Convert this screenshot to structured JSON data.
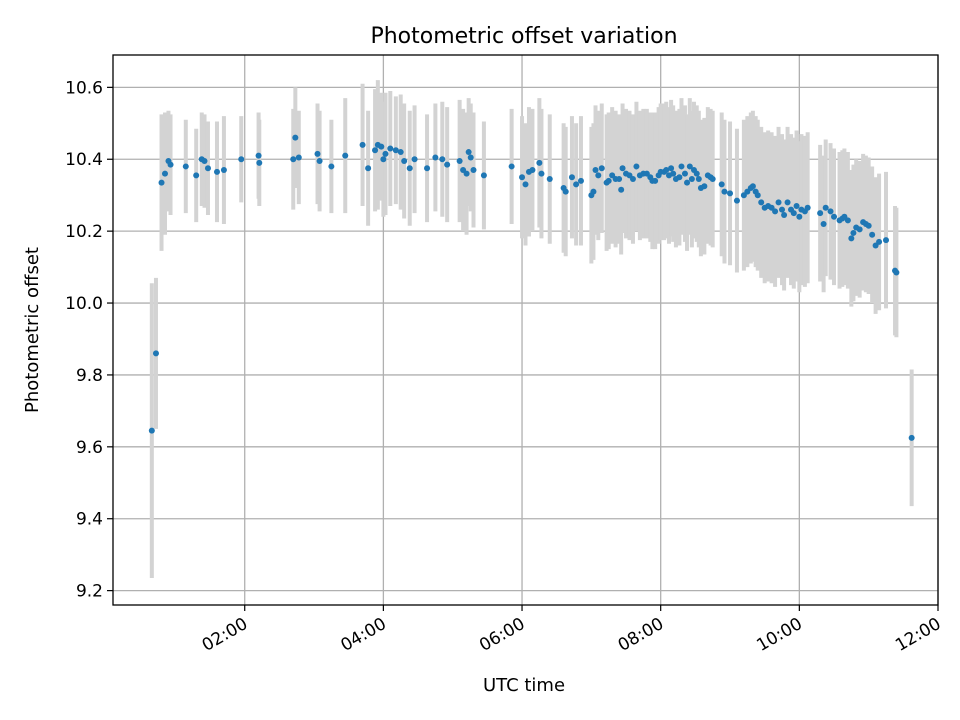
{
  "chart_data": {
    "type": "scatter",
    "title": "Photometric offset variation",
    "xlabel": "UTC time",
    "ylabel": "Photometric offset",
    "x_unit": "hours UTC",
    "xlim": [
      0.1,
      12.0
    ],
    "ylim": [
      9.16,
      10.69
    ],
    "grid": true,
    "x_ticks": [
      {
        "value": 2,
        "label": "02:00"
      },
      {
        "value": 4,
        "label": "04:00"
      },
      {
        "value": 6,
        "label": "06:00"
      },
      {
        "value": 8,
        "label": "08:00"
      },
      {
        "value": 10,
        "label": "10:00"
      },
      {
        "value": 12,
        "label": "12:00"
      }
    ],
    "y_ticks": [
      9.2,
      9.4,
      9.6,
      9.8,
      10.0,
      10.2,
      10.4,
      10.6
    ],
    "y_tick_labels": [
      "9.2",
      "9.4",
      "9.6",
      "9.8",
      "10.0",
      "10.2",
      "10.4",
      "10.6"
    ],
    "point_color": "#1f77b4",
    "errorbar_color": "#d3d3d3",
    "series": [
      {
        "name": "offset",
        "points": [
          [
            0.66,
            9.645,
            0.41
          ],
          [
            0.72,
            9.86,
            0.21
          ],
          [
            0.8,
            10.335,
            0.19
          ],
          [
            0.85,
            10.36,
            0.17
          ],
          [
            0.9,
            10.395,
            0.14
          ],
          [
            0.93,
            10.385,
            0.14
          ],
          [
            1.15,
            10.38,
            0.13
          ],
          [
            1.3,
            10.355,
            0.13
          ],
          [
            1.38,
            10.4,
            0.13
          ],
          [
            1.42,
            10.395,
            0.13
          ],
          [
            1.47,
            10.375,
            0.13
          ],
          [
            1.6,
            10.365,
            0.14
          ],
          [
            1.7,
            10.37,
            0.15
          ],
          [
            1.95,
            10.4,
            0.12
          ],
          [
            2.2,
            10.41,
            0.12
          ],
          [
            2.21,
            10.39,
            0.12
          ],
          [
            2.7,
            10.4,
            0.14
          ],
          [
            2.73,
            10.46,
            0.14
          ],
          [
            2.78,
            10.405,
            0.13
          ],
          [
            3.05,
            10.415,
            0.14
          ],
          [
            3.08,
            10.395,
            0.14
          ],
          [
            3.25,
            10.38,
            0.13
          ],
          [
            3.45,
            10.41,
            0.16
          ],
          [
            3.7,
            10.44,
            0.17
          ],
          [
            3.78,
            10.375,
            0.16
          ],
          [
            3.88,
            10.425,
            0.17
          ],
          [
            3.92,
            10.44,
            0.18
          ],
          [
            3.97,
            10.435,
            0.15
          ],
          [
            4.0,
            10.4,
            0.16
          ],
          [
            4.03,
            10.415,
            0.17
          ],
          [
            4.1,
            10.43,
            0.16
          ],
          [
            4.18,
            10.425,
            0.15
          ],
          [
            4.25,
            10.42,
            0.16
          ],
          [
            4.3,
            10.395,
            0.16
          ],
          [
            4.38,
            10.375,
            0.16
          ],
          [
            4.45,
            10.4,
            0.15
          ],
          [
            4.63,
            10.375,
            0.15
          ],
          [
            4.75,
            10.405,
            0.15
          ],
          [
            4.85,
            10.4,
            0.16
          ],
          [
            4.92,
            10.385,
            0.16
          ],
          [
            5.1,
            10.395,
            0.17
          ],
          [
            5.15,
            10.37,
            0.17
          ],
          [
            5.2,
            10.36,
            0.17
          ],
          [
            5.23,
            10.42,
            0.15
          ],
          [
            5.26,
            10.405,
            0.15
          ],
          [
            5.3,
            10.37,
            0.16
          ],
          [
            5.45,
            10.355,
            0.15
          ],
          [
            5.85,
            10.38,
            0.16
          ],
          [
            6.0,
            10.35,
            0.17
          ],
          [
            6.05,
            10.33,
            0.17
          ],
          [
            6.1,
            10.365,
            0.18
          ],
          [
            6.15,
            10.37,
            0.17
          ],
          [
            6.25,
            10.39,
            0.18
          ],
          [
            6.28,
            10.36,
            0.18
          ],
          [
            6.4,
            10.345,
            0.18
          ],
          [
            6.6,
            10.32,
            0.18
          ],
          [
            6.63,
            10.31,
            0.18
          ],
          [
            6.72,
            10.35,
            0.17
          ],
          [
            6.78,
            10.33,
            0.17
          ],
          [
            6.85,
            10.34,
            0.18
          ],
          [
            7.0,
            10.3,
            0.19
          ],
          [
            7.03,
            10.31,
            0.19
          ],
          [
            7.06,
            10.37,
            0.18
          ],
          [
            7.1,
            10.355,
            0.18
          ],
          [
            7.15,
            10.375,
            0.18
          ],
          [
            7.22,
            10.335,
            0.19
          ],
          [
            7.25,
            10.34,
            0.19
          ],
          [
            7.3,
            10.355,
            0.19
          ],
          [
            7.35,
            10.345,
            0.19
          ],
          [
            7.4,
            10.345,
            0.18
          ],
          [
            7.43,
            10.315,
            0.18
          ],
          [
            7.45,
            10.375,
            0.18
          ],
          [
            7.5,
            10.36,
            0.18
          ],
          [
            7.55,
            10.355,
            0.18
          ],
          [
            7.6,
            10.345,
            0.18
          ],
          [
            7.65,
            10.38,
            0.18
          ],
          [
            7.7,
            10.355,
            0.18
          ],
          [
            7.75,
            10.36,
            0.18
          ],
          [
            7.8,
            10.36,
            0.18
          ],
          [
            7.85,
            10.35,
            0.18
          ],
          [
            7.88,
            10.34,
            0.19
          ],
          [
            7.92,
            10.34,
            0.19
          ],
          [
            7.97,
            10.355,
            0.19
          ],
          [
            8.0,
            10.365,
            0.19
          ],
          [
            8.05,
            10.365,
            0.19
          ],
          [
            8.08,
            10.37,
            0.19
          ],
          [
            8.12,
            10.355,
            0.19
          ],
          [
            8.15,
            10.375,
            0.19
          ],
          [
            8.18,
            10.36,
            0.19
          ],
          [
            8.22,
            10.345,
            0.19
          ],
          [
            8.27,
            10.35,
            0.19
          ],
          [
            8.3,
            10.38,
            0.19
          ],
          [
            8.35,
            10.36,
            0.19
          ],
          [
            8.38,
            10.335,
            0.19
          ],
          [
            8.42,
            10.38,
            0.19
          ],
          [
            8.45,
            10.345,
            0.19
          ],
          [
            8.48,
            10.37,
            0.19
          ],
          [
            8.52,
            10.36,
            0.19
          ],
          [
            8.55,
            10.345,
            0.19
          ],
          [
            8.58,
            10.32,
            0.19
          ],
          [
            8.63,
            10.325,
            0.19
          ],
          [
            8.68,
            10.355,
            0.19
          ],
          [
            8.72,
            10.35,
            0.19
          ],
          [
            8.75,
            10.345,
            0.19
          ],
          [
            8.88,
            10.33,
            0.2
          ],
          [
            8.92,
            10.31,
            0.2
          ],
          [
            9.0,
            10.305,
            0.2
          ],
          [
            9.1,
            10.285,
            0.2
          ],
          [
            9.2,
            10.3,
            0.21
          ],
          [
            9.25,
            10.31,
            0.21
          ],
          [
            9.3,
            10.32,
            0.21
          ],
          [
            9.33,
            10.325,
            0.21
          ],
          [
            9.37,
            10.31,
            0.21
          ],
          [
            9.4,
            10.3,
            0.21
          ],
          [
            9.45,
            10.28,
            0.21
          ],
          [
            9.5,
            10.265,
            0.21
          ],
          [
            9.55,
            10.27,
            0.21
          ],
          [
            9.6,
            10.265,
            0.21
          ],
          [
            9.65,
            10.255,
            0.21
          ],
          [
            9.7,
            10.28,
            0.21
          ],
          [
            9.75,
            10.26,
            0.21
          ],
          [
            9.78,
            10.245,
            0.21
          ],
          [
            9.83,
            10.28,
            0.21
          ],
          [
            9.88,
            10.26,
            0.21
          ],
          [
            9.92,
            10.25,
            0.21
          ],
          [
            9.96,
            10.27,
            0.21
          ],
          [
            10.0,
            10.24,
            0.21
          ],
          [
            10.03,
            10.26,
            0.21
          ],
          [
            10.08,
            10.255,
            0.21
          ],
          [
            10.12,
            10.265,
            0.21
          ],
          [
            10.3,
            10.25,
            0.19
          ],
          [
            10.35,
            10.22,
            0.19
          ],
          [
            10.38,
            10.265,
            0.19
          ],
          [
            10.45,
            10.255,
            0.19
          ],
          [
            10.5,
            10.24,
            0.19
          ],
          [
            10.58,
            10.23,
            0.19
          ],
          [
            10.62,
            10.235,
            0.19
          ],
          [
            10.65,
            10.24,
            0.19
          ],
          [
            10.7,
            10.23,
            0.19
          ],
          [
            10.75,
            10.18,
            0.19
          ],
          [
            10.78,
            10.195,
            0.19
          ],
          [
            10.82,
            10.21,
            0.19
          ],
          [
            10.87,
            10.205,
            0.19
          ],
          [
            10.92,
            10.225,
            0.19
          ],
          [
            10.96,
            10.22,
            0.19
          ],
          [
            11.0,
            10.215,
            0.19
          ],
          [
            11.05,
            10.19,
            0.19
          ],
          [
            11.1,
            10.16,
            0.19
          ],
          [
            11.15,
            10.17,
            0.19
          ],
          [
            11.25,
            10.175,
            0.19
          ],
          [
            11.38,
            10.09,
            0.18
          ],
          [
            11.4,
            10.085,
            0.18
          ],
          [
            11.62,
            9.625,
            0.19
          ]
        ]
      }
    ]
  }
}
